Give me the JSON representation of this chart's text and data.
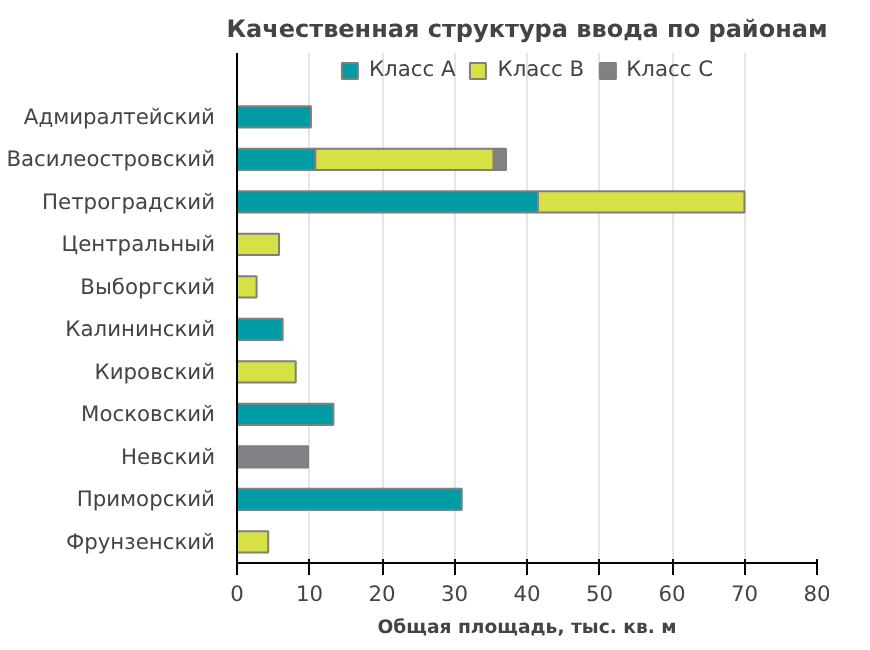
{
  "chart_data": {
    "type": "bar",
    "orientation": "horizontal",
    "stacked": true,
    "title": "Качественная структура ввода по районам",
    "xlabel": "Общая площадь, тыс. кв. м",
    "categories": [
      "Адмиралтейский",
      "Василеостровский",
      "Петроградский",
      "Центральный",
      "Выборгский",
      "Калининский",
      "Кировский",
      "Московский",
      "Невский",
      "Приморский",
      "Фрунзенский"
    ],
    "series": [
      {
        "name": "Класс A",
        "color": "#009ca6",
        "values": [
          10.2,
          10.8,
          41.5,
          null,
          null,
          6.3,
          null,
          13.3,
          null,
          31,
          null
        ]
      },
      {
        "name": "Класс B",
        "color": "#d7e045",
        "values": [
          null,
          24.6,
          28.5,
          5.8,
          2.7,
          null,
          8.1,
          null,
          null,
          null,
          4.3
        ]
      },
      {
        "name": "Класс C",
        "color": "#808285",
        "values": [
          null,
          1.7,
          null,
          null,
          null,
          null,
          null,
          null,
          9.8,
          null,
          null
        ]
      }
    ],
    "xlim": [
      0,
      80
    ],
    "xticks": [
      0,
      10,
      20,
      30,
      40,
      50,
      60,
      70,
      80
    ],
    "grid": "x",
    "legend": "top"
  }
}
